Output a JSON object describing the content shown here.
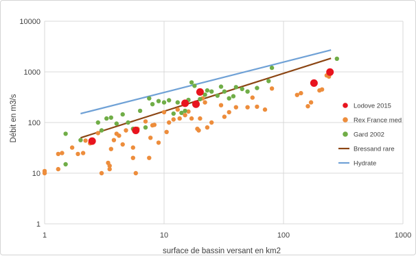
{
  "chart_data": {
    "type": "scatter",
    "xscale": "log",
    "yscale": "log",
    "xlim": [
      1,
      1000
    ],
    "ylim": [
      1,
      10000
    ],
    "x_ticks": [
      1,
      10,
      100,
      1000
    ],
    "y_ticks": [
      1,
      10,
      100,
      1000,
      10000
    ],
    "x_tick_labels": [
      "1",
      "10",
      "100",
      "1000"
    ],
    "y_tick_labels": [
      "1",
      "10",
      "100",
      "1000",
      "10000"
    ],
    "xlabel": "surface de bassin versant en km2",
    "ylabel": "Débit en m3/s",
    "grid": true,
    "legend_position": "right",
    "series": [
      {
        "name": "Lodove 2015",
        "kind": "scatter",
        "color": "#e8141e",
        "points": [
          [
            2.5,
            43
          ],
          [
            5.8,
            70
          ],
          [
            15,
            240
          ],
          [
            18.5,
            230
          ],
          [
            20,
            400
          ],
          [
            180,
            600
          ],
          [
            245,
            990
          ]
        ]
      },
      {
        "name": "Rex France med",
        "kind": "scatter",
        "color": "#ed8d3c",
        "points": [
          [
            1,
            11
          ],
          [
            1,
            10
          ],
          [
            1.3,
            24
          ],
          [
            1.3,
            12
          ],
          [
            1.4,
            25
          ],
          [
            1.7,
            32
          ],
          [
            1.9,
            24
          ],
          [
            2.1,
            25
          ],
          [
            2.2,
            44
          ],
          [
            2.4,
            39
          ],
          [
            2.5,
            42
          ],
          [
            2.8,
            62
          ],
          [
            3,
            10
          ],
          [
            3.4,
            16
          ],
          [
            3.5,
            12
          ],
          [
            3.5,
            14
          ],
          [
            3.6,
            30
          ],
          [
            3.8,
            45
          ],
          [
            4,
            60
          ],
          [
            4.2,
            55
          ],
          [
            4.5,
            37
          ],
          [
            4.8,
            70
          ],
          [
            5.5,
            32
          ],
          [
            5.5,
            20
          ],
          [
            5.8,
            10
          ],
          [
            6,
            75
          ],
          [
            7,
            105
          ],
          [
            7.5,
            20
          ],
          [
            7.7,
            50
          ],
          [
            8,
            88
          ],
          [
            8.3,
            90
          ],
          [
            9,
            40
          ],
          [
            10,
            160
          ],
          [
            10.5,
            65
          ],
          [
            11,
            100
          ],
          [
            12,
            115
          ],
          [
            13,
            180
          ],
          [
            13.5,
            120
          ],
          [
            15,
            140
          ],
          [
            16,
            165
          ],
          [
            17,
            120
          ],
          [
            19,
            75
          ],
          [
            19.5,
            70
          ],
          [
            20,
            120
          ],
          [
            21,
            300
          ],
          [
            22,
            250
          ],
          [
            23,
            80
          ],
          [
            25,
            100
          ],
          [
            30,
            220
          ],
          [
            32,
            130
          ],
          [
            35,
            160
          ],
          [
            40,
            200
          ],
          [
            50,
            200
          ],
          [
            55,
            310
          ],
          [
            60,
            205
          ],
          [
            70,
            180
          ],
          [
            80,
            470
          ],
          [
            130,
            350
          ],
          [
            140,
            380
          ],
          [
            160,
            210
          ],
          [
            170,
            250
          ],
          [
            200,
            430
          ],
          [
            210,
            450
          ],
          [
            230,
            850
          ],
          [
            240,
            810
          ]
        ]
      },
      {
        "name": "Gard 2002",
        "kind": "scatter",
        "color": "#70ad47",
        "points": [
          [
            1.5,
            60
          ],
          [
            1.5,
            15
          ],
          [
            2,
            45
          ],
          [
            2.8,
            100
          ],
          [
            3,
            70
          ],
          [
            3.3,
            120
          ],
          [
            3.6,
            125
          ],
          [
            4,
            95
          ],
          [
            4.5,
            145
          ],
          [
            5,
            100
          ],
          [
            5.5,
            75
          ],
          [
            6.3,
            170
          ],
          [
            7,
            80
          ],
          [
            7.5,
            300
          ],
          [
            8,
            230
          ],
          [
            9,
            265
          ],
          [
            10,
            250
          ],
          [
            11,
            275
          ],
          [
            12,
            150
          ],
          [
            13,
            250
          ],
          [
            14,
            155
          ],
          [
            15,
            170
          ],
          [
            16,
            280
          ],
          [
            17,
            620
          ],
          [
            18,
            530
          ],
          [
            20,
            290
          ],
          [
            22,
            355
          ],
          [
            23,
            430
          ],
          [
            25,
            410
          ],
          [
            28,
            340
          ],
          [
            30,
            510
          ],
          [
            32,
            410
          ],
          [
            35,
            300
          ],
          [
            38,
            330
          ],
          [
            40,
            500
          ],
          [
            45,
            460
          ],
          [
            50,
            410
          ],
          [
            60,
            480
          ],
          [
            75,
            660
          ],
          [
            80,
            1200
          ],
          [
            280,
            1820
          ]
        ]
      },
      {
        "name": "Bressand rare",
        "kind": "line",
        "color": "#8b4513",
        "points": [
          [
            2,
            50
          ],
          [
            250,
            1850
          ]
        ]
      },
      {
        "name": "Hydrate",
        "kind": "line",
        "color": "#6fa1d6",
        "points": [
          [
            2,
            150
          ],
          [
            250,
            2700
          ]
        ]
      }
    ]
  }
}
